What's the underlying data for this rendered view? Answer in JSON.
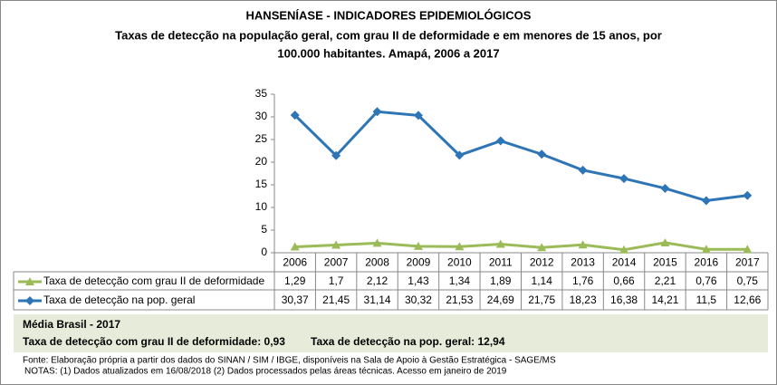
{
  "chart_data": {
    "type": "line",
    "title": "HANSENÍASE - INDICADORES EPIDEMIOLÓGICOS",
    "subtitle": [
      "Taxas de detecção na população geral, com grau II de deformidade e em menores de 15 anos, por",
      "100.000  habitantes. Amapá, 2006 a 2017"
    ],
    "categories": [
      "2006",
      "2007",
      "2008",
      "2009",
      "2010",
      "2011",
      "2012",
      "2013",
      "2014",
      "2015",
      "2016",
      "2017"
    ],
    "series": [
      {
        "name": "Taxa de detecção com grau II de deformidade",
        "color": "#9bbb59",
        "marker": "triangle",
        "values": [
          1.29,
          1.7,
          2.12,
          1.43,
          1.34,
          1.89,
          1.14,
          1.76,
          0.66,
          2.21,
          0.76,
          0.75
        ],
        "value_labels": [
          "1,29",
          "1,7",
          "2,12",
          "1,43",
          "1,34",
          "1,89",
          "1,14",
          "1,76",
          "0,66",
          "2,21",
          "0,76",
          "0,75"
        ]
      },
      {
        "name": "Taxa de detecção na pop. geral",
        "color": "#2e75b6",
        "marker": "diamond",
        "values": [
          30.37,
          21.45,
          31.14,
          30.32,
          21.53,
          24.69,
          21.75,
          18.23,
          16.38,
          14.21,
          11.5,
          12.66
        ],
        "value_labels": [
          "30,37",
          "21,45",
          "31,14",
          "30,32",
          "21,53",
          "24,69",
          "21,75",
          "18,23",
          "16,38",
          "14,21",
          "11,5",
          "12,66"
        ]
      }
    ],
    "ylim": [
      0,
      35
    ],
    "yticks": [
      0,
      5,
      10,
      15,
      20,
      25,
      30,
      35
    ],
    "grid": false
  },
  "brasil": {
    "title": "Média Brasil - 2017",
    "items": [
      "Taxa de detecção com grau II de deformidade: 0,93",
      "Taxa de detecção na pop. geral: 12,94"
    ]
  },
  "footer": [
    "Fonte:  Elaboração própria a partir dos dados do  SINAN / SIM / IBGE, disponíveis na Sala de Apoio à Gestão Estratégica - SAGE/MS",
    "NOTAS: (1) Dados atualizados em 16/08/2018 (2) Dados processados pelas áreas técnicas. Acesso em janeiro de 2019"
  ]
}
